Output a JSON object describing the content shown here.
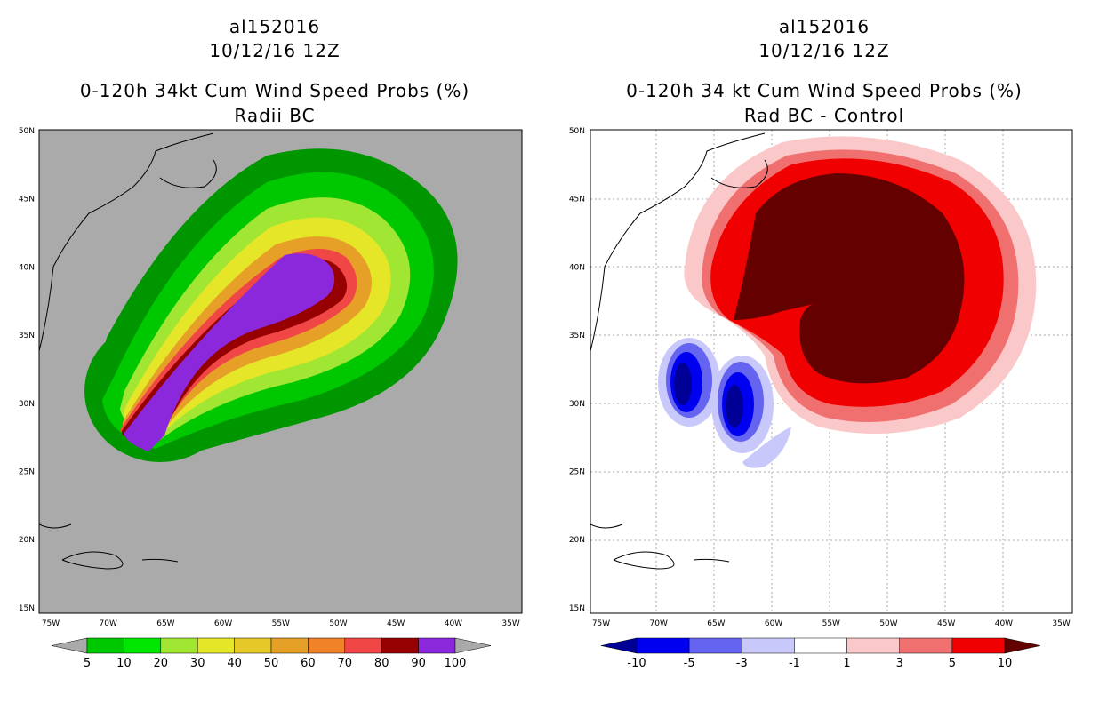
{
  "left": {
    "storm_id": "al152016",
    "datetime": "10/12/16 12Z",
    "product": "0-120h 34kt Cum Wind Speed Probs (%)",
    "subtitle": "Radii BC",
    "colorbar": {
      "labels": [
        "5",
        "10",
        "20",
        "30",
        "40",
        "50",
        "60",
        "70",
        "80",
        "90",
        "100"
      ],
      "colors": [
        "#009600",
        "#00c800",
        "#00e600",
        "#a0e632",
        "#e6e628",
        "#e6c828",
        "#e6a028",
        "#f08228",
        "#f04646",
        "#960000",
        "#8c28dc"
      ]
    }
  },
  "right": {
    "storm_id": "al152016",
    "datetime": "10/12/16 12Z",
    "product": "0-120h 34 kt Cum Wind Speed Probs (%)",
    "subtitle": "Rad BC - Control",
    "colorbar": {
      "labels": [
        "-10",
        "-5",
        "-3",
        "-1",
        "1",
        "3",
        "5",
        "10"
      ],
      "colors": [
        "#000096",
        "#0000f0",
        "#6464f0",
        "#c8c8fa",
        "#ffffff",
        "#fac8c8",
        "#f07070",
        "#f00000",
        "#640000"
      ]
    }
  },
  "axes": {
    "lon_labels": [
      "75W",
      "70W",
      "65W",
      "60W",
      "55W",
      "50W",
      "45W",
      "40W",
      "35W"
    ],
    "lat_labels": [
      "50N",
      "45N",
      "40N",
      "35N",
      "30N",
      "25N",
      "20N",
      "15N"
    ]
  },
  "colors": {
    "map_background_left": "#aaaaaa",
    "map_background_right": "#ffffff",
    "gridline": "#aaaaaa"
  }
}
